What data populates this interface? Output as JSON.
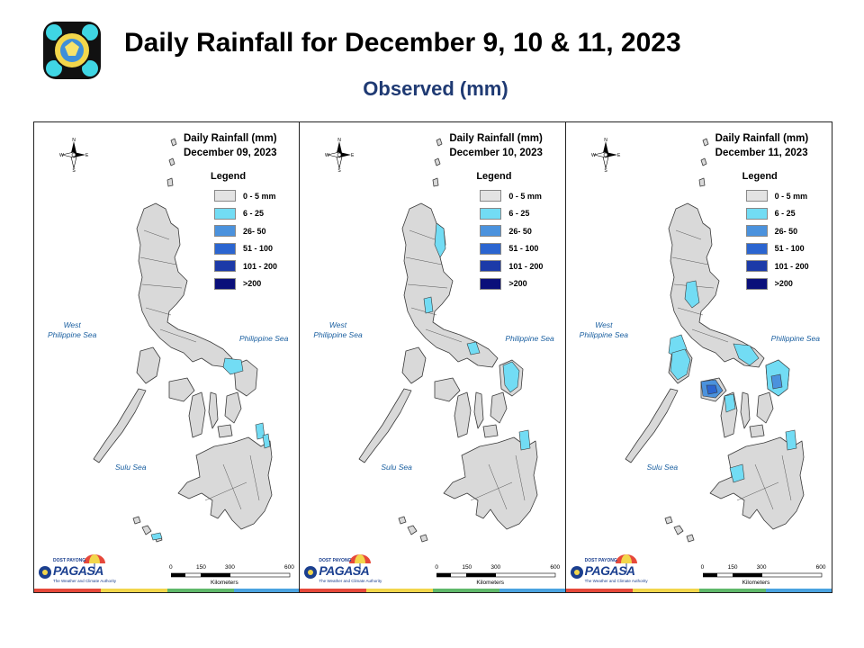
{
  "header": {
    "title": "Daily Rainfall for December 9, 10 & 11, 2023",
    "subtitle": "Observed (mm)"
  },
  "panels": [
    {
      "heading": "Daily Rainfall (mm)",
      "date": "December 09, 2023"
    },
    {
      "heading": "Daily Rainfall (mm)",
      "date": "December 10, 2023"
    },
    {
      "heading": "Daily Rainfall (mm)",
      "date": "December 11, 2023"
    }
  ],
  "legend": {
    "title": "Legend",
    "classes": [
      {
        "label": "0 - 5 mm",
        "color": "#e3e3e3"
      },
      {
        "label": "6 - 25",
        "color": "#72dcf4"
      },
      {
        "label": "26- 50",
        "color": "#4b92dd"
      },
      {
        "label": "51 - 100",
        "color": "#2b65d0"
      },
      {
        "label": "101 - 200",
        "color": "#1c3aa8"
      },
      {
        "label": ">200",
        "color": "#0a0f7a"
      }
    ]
  },
  "seas": {
    "west": "West\nPhilippine Sea",
    "philippine": "Philippine Sea",
    "sulu": "Sulu Sea"
  },
  "compass": {
    "n": "N",
    "s": "S",
    "e": "E",
    "w": "W"
  },
  "scale": {
    "ticks": [
      "0",
      "150",
      "300",
      "600"
    ],
    "unit": "Kilometers"
  },
  "branding": {
    "small": "DOST PAYONG",
    "name": "PAGASA",
    "tagline": "The Weather and Climate Authority"
  },
  "colors": {
    "land": "#d9d9d9",
    "border": "#3a3a3a",
    "rain_light": "#72dcf4",
    "rain_moderate": "#4b92dd",
    "rain_heavy": "#2b65d0",
    "title_blue": "#1f3a73"
  }
}
